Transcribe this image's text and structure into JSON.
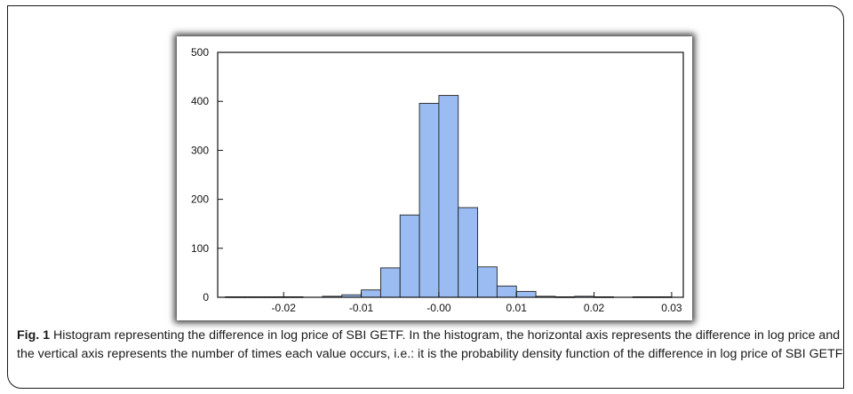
{
  "chart_data": {
    "type": "bar",
    "bin_width": 0.0025,
    "bins": [
      {
        "start": -0.0275,
        "count": 1
      },
      {
        "start": -0.025,
        "count": 1
      },
      {
        "start": -0.0225,
        "count": 1
      },
      {
        "start": -0.02,
        "count": 1
      },
      {
        "start": -0.0175,
        "count": 0
      },
      {
        "start": -0.015,
        "count": 2
      },
      {
        "start": -0.0125,
        "count": 5
      },
      {
        "start": -0.01,
        "count": 15
      },
      {
        "start": -0.0075,
        "count": 60
      },
      {
        "start": -0.005,
        "count": 168
      },
      {
        "start": -0.0025,
        "count": 396
      },
      {
        "start": 0.0,
        "count": 412
      },
      {
        "start": 0.0025,
        "count": 183
      },
      {
        "start": 0.005,
        "count": 62
      },
      {
        "start": 0.0075,
        "count": 23
      },
      {
        "start": 0.01,
        "count": 12
      },
      {
        "start": 0.0125,
        "count": 2
      },
      {
        "start": 0.015,
        "count": 1
      },
      {
        "start": 0.0175,
        "count": 2
      },
      {
        "start": 0.02,
        "count": 1
      },
      {
        "start": 0.0225,
        "count": 0
      },
      {
        "start": 0.025,
        "count": 1
      },
      {
        "start": 0.0275,
        "count": 1
      }
    ],
    "xlim": [
      -0.0285,
      0.0315
    ],
    "ylim": [
      0,
      500
    ],
    "xticks": [
      {
        "value": -0.02,
        "label": "-0.02"
      },
      {
        "value": -0.01,
        "label": "-0.01"
      },
      {
        "value": 0.0,
        "label": "-0.00"
      },
      {
        "value": 0.01,
        "label": "0.01"
      },
      {
        "value": 0.02,
        "label": "0.02"
      },
      {
        "value": 0.03,
        "label": "0.03"
      }
    ],
    "yticks": [
      {
        "value": 0,
        "label": "0"
      },
      {
        "value": 100,
        "label": "100"
      },
      {
        "value": 200,
        "label": "200"
      },
      {
        "value": 300,
        "label": "300"
      },
      {
        "value": 400,
        "label": "400"
      },
      {
        "value": 500,
        "label": "500"
      }
    ],
    "bar_color": "#9bbcf2",
    "bar_edge_color": "#222222",
    "grid": false
  },
  "caption": {
    "label": "Fig. 1",
    "text": "Histogram representing the difference in log price of SBI GETF. In the histogram, the horizontal axis represents the difference in log price and the vertical axis represents the number of times each value occurs, i.e.: it is the probability density function of the difference in log price of SBI GETF"
  }
}
